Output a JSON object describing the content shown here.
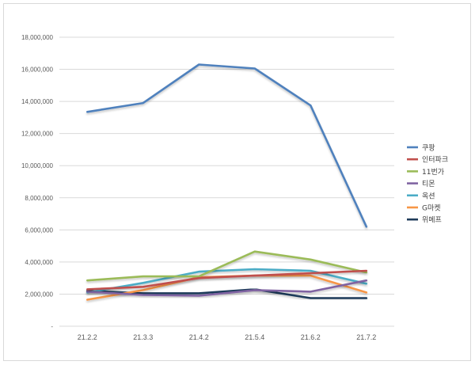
{
  "chart_data": {
    "type": "line",
    "title": "",
    "xlabel": "",
    "ylabel": "",
    "categories": [
      "21.2.2",
      "21.3.3",
      "21.4.2",
      "21.5.4",
      "21.6.2",
      "21.7.2"
    ],
    "ylim": [
      0,
      18000000
    ],
    "y_ticks": [
      0,
      2000000,
      4000000,
      6000000,
      8000000,
      10000000,
      12000000,
      14000000,
      16000000,
      18000000
    ],
    "y_tick_labels": [
      "-",
      "2,000,000",
      "4,000,000",
      "6,000,000",
      "8,000,000",
      "10,000,000",
      "12,000,000",
      "14,000,000",
      "16,000,000",
      "18,000,000"
    ],
    "grid": true,
    "legend_position": "right",
    "series": [
      {
        "name": "쿠팡",
        "color": "#4f81bd",
        "values": [
          13350000,
          13900000,
          16300000,
          16050000,
          13750000,
          6200000
        ]
      },
      {
        "name": "인터파크",
        "color": "#c0504d",
        "values": [
          2300000,
          2450000,
          3000000,
          3150000,
          3300000,
          3450000
        ]
      },
      {
        "name": "11번가",
        "color": "#9bbb59",
        "values": [
          2850000,
          3100000,
          3100000,
          4650000,
          4150000,
          3350000
        ]
      },
      {
        "name": "티몬",
        "color": "#8064a2",
        "values": [
          2150000,
          1950000,
          1900000,
          2250000,
          2150000,
          2850000
        ]
      },
      {
        "name": "옥션",
        "color": "#4bacc6",
        "values": [
          2100000,
          2700000,
          3400000,
          3550000,
          3450000,
          2650000
        ]
      },
      {
        "name": "G마켓",
        "color": "#f79646",
        "values": [
          1650000,
          2250000,
          3050000,
          3150000,
          3150000,
          2100000
        ]
      },
      {
        "name": "위메프",
        "color": "#1f3b5a",
        "values": [
          2200000,
          2050000,
          2050000,
          2300000,
          1750000,
          1750000
        ]
      }
    ]
  }
}
